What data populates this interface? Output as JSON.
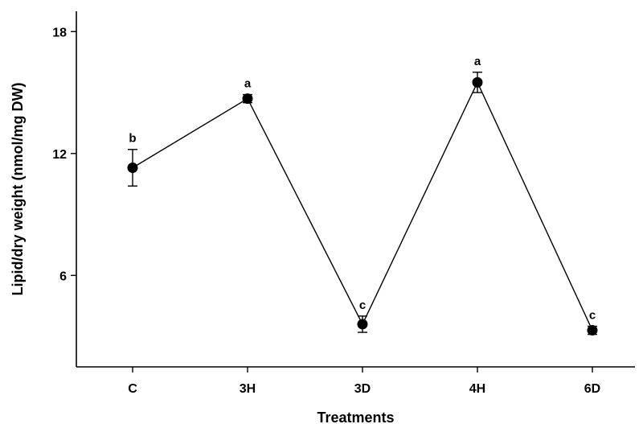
{
  "chart_data": {
    "type": "line",
    "title": "",
    "xlabel": "Treatments",
    "ylabel": "Lipid/dry weight (nmol/mg DW)",
    "categories": [
      "C",
      "3H",
      "3D",
      "4H",
      "6D"
    ],
    "ylim": [
      1.5,
      19
    ],
    "yticks": [
      6,
      12,
      18
    ],
    "grid": false,
    "series": [
      {
        "values": [
          11.3,
          14.7,
          3.6,
          15.5,
          3.3
        ],
        "errors": [
          0.9,
          0.2,
          0.4,
          0.5,
          0.2
        ],
        "labels": [
          "b",
          "a",
          "c",
          "a",
          "c"
        ]
      }
    ]
  }
}
